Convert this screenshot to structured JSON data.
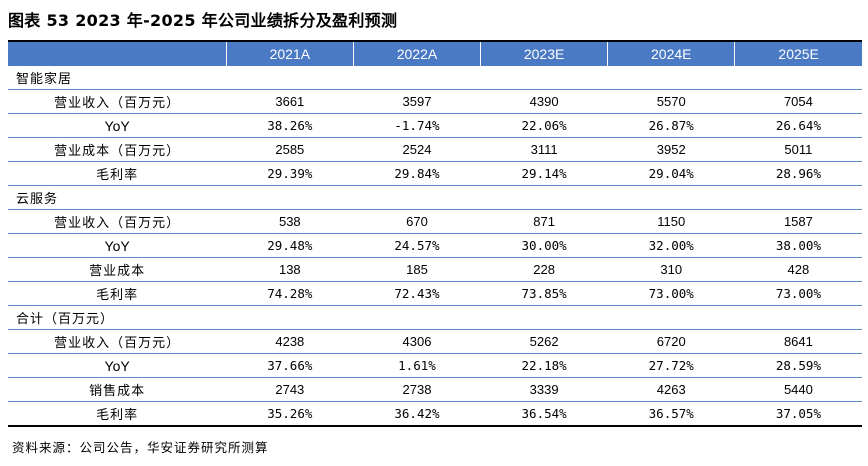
{
  "title": "图表 53 2023 年-2025 年公司业绩拆分及盈利预测",
  "columns": [
    "2021A",
    "2022A",
    "2023E",
    "2024E",
    "2025E"
  ],
  "sections": [
    {
      "name": "智能家居",
      "rows": [
        {
          "label": "营业收入（百万元）",
          "values": [
            "3661",
            "3597",
            "4390",
            "5570",
            "7054"
          ],
          "kind": "num"
        },
        {
          "label": "YoY",
          "values": [
            "38.26%",
            "-1.74%",
            "22.06%",
            "26.87%",
            "26.64%"
          ],
          "kind": "pct"
        },
        {
          "label": "营业成本（百万元）",
          "values": [
            "2585",
            "2524",
            "3111",
            "3952",
            "5011"
          ],
          "kind": "num"
        },
        {
          "label": "毛利率",
          "values": [
            "29.39%",
            "29.84%",
            "29.14%",
            "29.04%",
            "28.96%"
          ],
          "kind": "pct"
        }
      ]
    },
    {
      "name": "云服务",
      "rows": [
        {
          "label": "营业收入（百万元）",
          "values": [
            "538",
            "670",
            "871",
            "1150",
            "1587"
          ],
          "kind": "num"
        },
        {
          "label": "YoY",
          "values": [
            "29.48%",
            "24.57%",
            "30.00%",
            "32.00%",
            "38.00%"
          ],
          "kind": "pct"
        },
        {
          "label": "营业成本",
          "values": [
            "138",
            "185",
            "228",
            "310",
            "428"
          ],
          "kind": "num"
        },
        {
          "label": "毛利率",
          "values": [
            "74.28%",
            "72.43%",
            "73.85%",
            "73.00%",
            "73.00%"
          ],
          "kind": "pct"
        }
      ]
    },
    {
      "name": "合计（百万元）",
      "rows": [
        {
          "label": "营业收入（百万元）",
          "values": [
            "4238",
            "4306",
            "5262",
            "6720",
            "8641"
          ],
          "kind": "num"
        },
        {
          "label": "YoY",
          "values": [
            "37.66%",
            "1.61%",
            "22.18%",
            "27.72%",
            "28.59%"
          ],
          "kind": "pct"
        },
        {
          "label": "销售成本",
          "values": [
            "2743",
            "2738",
            "3339",
            "4263",
            "5440"
          ],
          "kind": "num"
        },
        {
          "label": "毛利率",
          "values": [
            "35.26%",
            "36.42%",
            "36.54%",
            "36.57%",
            "37.05%"
          ],
          "kind": "pct"
        }
      ]
    }
  ],
  "source": "资料来源：公司公告，华安证券研究所测算"
}
